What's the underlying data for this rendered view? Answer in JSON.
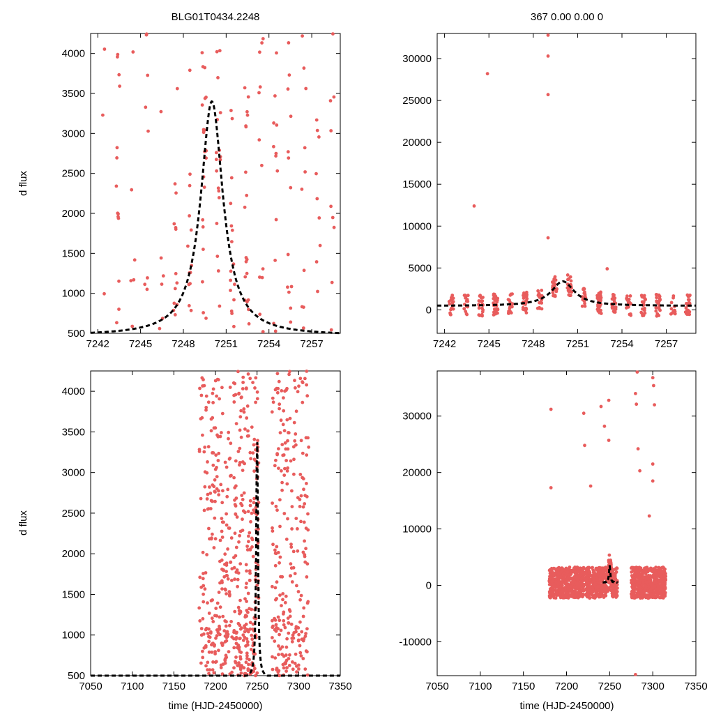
{
  "titles": {
    "left": "BLG01T0434.2248",
    "right": "367  0.00  0.00  0"
  },
  "labels": {
    "ylabel": "d flux",
    "xlabel": "time (HJD-2450000)"
  },
  "colors": {
    "points": "#e85c5c",
    "model": "#000000",
    "axis": "#000000"
  },
  "chart_data": [
    {
      "id": "top-left",
      "type": "scatter",
      "title": "BLG01T0434.2248",
      "xlim": [
        7241.5,
        7259
      ],
      "ylim": [
        500,
        4250
      ],
      "xticks": [
        7242,
        7245,
        7248,
        7251,
        7254,
        7257
      ],
      "yticks": [
        500,
        1000,
        1500,
        2000,
        2500,
        3000,
        3500,
        4000
      ],
      "ylabel": "d flux",
      "xlabel": "",
      "model": {
        "t0": 7250.0,
        "peak": 3400,
        "base": 470,
        "width": 0.95
      },
      "scatter_seed": 1,
      "scatter_count": 230
    },
    {
      "id": "top-right",
      "type": "scatter",
      "title": "367  0.00  0.00  0",
      "xlim": [
        7241.5,
        7259
      ],
      "ylim": [
        -2800,
        33000
      ],
      "xticks": [
        7242,
        7245,
        7248,
        7251,
        7254,
        7257
      ],
      "yticks": [
        0,
        5000,
        10000,
        15000,
        20000,
        25000,
        30000
      ],
      "ylabel": "",
      "xlabel": "",
      "model": {
        "t0": 7250.0,
        "peak": 3400,
        "base": 470,
        "width": 0.95
      },
      "outliers": [
        {
          "x": 7244.0,
          "y": 12400
        },
        {
          "x": 7244.9,
          "y": 28200
        },
        {
          "x": 7249.0,
          "y": 32800
        },
        {
          "x": 7249.0,
          "y": 30300
        },
        {
          "x": 7249.0,
          "y": 25700
        },
        {
          "x": 7249.0,
          "y": 8600
        },
        {
          "x": 7253.0,
          "y": 4900
        }
      ],
      "scatter_seed": 2,
      "scatter_count": 380
    },
    {
      "id": "bottom-left",
      "type": "scatter",
      "title": "",
      "xlim": [
        7050,
        7350
      ],
      "ylim": [
        500,
        4250
      ],
      "xticks": [
        7050,
        7100,
        7150,
        7200,
        7250,
        7300,
        7350
      ],
      "yticks": [
        500,
        1000,
        1500,
        2000,
        2500,
        3000,
        3500,
        4000
      ],
      "ylabel": "d flux",
      "xlabel": "time (HJD-2450000)",
      "model": {
        "t0": 7250.0,
        "peak": 3500,
        "base": 470,
        "width": 1.2
      },
      "seasons": [
        [
          7180,
          7220
        ],
        [
          7222,
          7252
        ],
        [
          7268,
          7312
        ]
      ],
      "scatter_seed": 3,
      "scatter_count": 900
    },
    {
      "id": "bottom-right",
      "type": "scatter",
      "title": "",
      "xlim": [
        7050,
        7350
      ],
      "ylim": [
        -16000,
        38000
      ],
      "xticks": [
        7050,
        7100,
        7150,
        7200,
        7250,
        7300,
        7350
      ],
      "yticks": [
        -10000,
        0,
        10000,
        20000,
        30000
      ],
      "ylabel": "",
      "xlabel": "time (HJD-2450000)",
      "model": {
        "t0": 7250.0,
        "peak": 3400,
        "base": 470,
        "width": 0.95,
        "xrange": [
          7242,
          7259
        ]
      },
      "seasons": [
        [
          7180,
          7220
        ],
        [
          7222,
          7259
        ],
        [
          7275,
          7315
        ]
      ],
      "outliers": [
        {
          "x": 7182,
          "y": 31200
        },
        {
          "x": 7182,
          "y": 17300
        },
        {
          "x": 7220,
          "y": 30500
        },
        {
          "x": 7221,
          "y": 24800
        },
        {
          "x": 7228,
          "y": 17600
        },
        {
          "x": 7240,
          "y": 31700
        },
        {
          "x": 7244,
          "y": 28200
        },
        {
          "x": 7249,
          "y": 32800
        },
        {
          "x": 7249,
          "y": 25700
        },
        {
          "x": 7282,
          "y": 37800
        },
        {
          "x": 7280,
          "y": 34000
        },
        {
          "x": 7281,
          "y": 32100
        },
        {
          "x": 7283,
          "y": 24200
        },
        {
          "x": 7285,
          "y": 20300
        },
        {
          "x": 7300,
          "y": 36800
        },
        {
          "x": 7301,
          "y": 35400
        },
        {
          "x": 7302,
          "y": 32000
        },
        {
          "x": 7300,
          "y": 21500
        },
        {
          "x": 7300,
          "y": 18500
        },
        {
          "x": 7296,
          "y": 12300
        },
        {
          "x": 7280,
          "y": -15800
        }
      ],
      "scatter_seed": 4,
      "scatter_count": 1400
    }
  ]
}
